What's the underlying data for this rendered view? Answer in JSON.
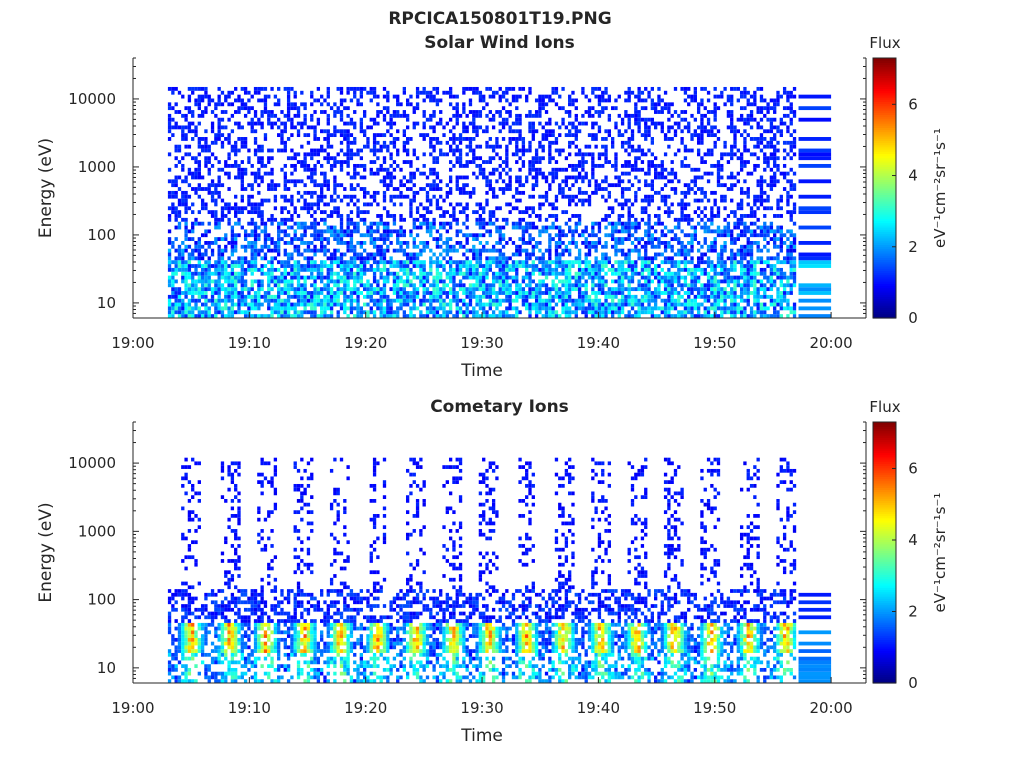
{
  "figure": {
    "title": "RPCICA150801T19.PNG"
  },
  "chart_data": [
    {
      "type": "heatmap",
      "title": "Solar Wind Ions",
      "xlabel": "Time",
      "ylabel": "Energy (eV)",
      "x_ticks": [
        "19:00",
        "19:10",
        "19:20",
        "19:30",
        "19:40",
        "19:50",
        "20:00"
      ],
      "x_tick_minutes": [
        0,
        10,
        20,
        30,
        40,
        50,
        60
      ],
      "xlim_minutes": [
        0,
        63
      ],
      "data_x_range_minutes": [
        3,
        57
      ],
      "y_scale": "log",
      "y_ticks": [
        "10",
        "100",
        "1000",
        "10000"
      ],
      "y_tick_values": [
        10,
        100,
        1000,
        10000
      ],
      "ylim": [
        6,
        40000
      ],
      "data_y_range": [
        6,
        15000
      ],
      "colorbar": {
        "label": "Flux",
        "unit_label": "eV⁻¹cm⁻²sr⁻¹s⁻¹",
        "ticks": [
          "0",
          "2",
          "4",
          "6"
        ],
        "tick_values": [
          0,
          2,
          4,
          6
        ],
        "range": [
          0,
          7.3
        ],
        "colormap": "jet"
      },
      "description_pattern": "sparse low-flux (~1) counts across all energies, higher flux (~2-4) bands below 100 eV"
    },
    {
      "type": "heatmap",
      "title": "Cometary Ions",
      "xlabel": "Time",
      "ylabel": "Energy (eV)",
      "x_ticks": [
        "19:00",
        "19:10",
        "19:20",
        "19:30",
        "19:40",
        "19:50",
        "20:00"
      ],
      "x_tick_minutes": [
        0,
        10,
        20,
        30,
        40,
        50,
        60
      ],
      "xlim_minutes": [
        0,
        63
      ],
      "data_x_range_minutes": [
        3,
        57
      ],
      "y_scale": "log",
      "y_ticks": [
        "10",
        "100",
        "1000",
        "10000"
      ],
      "y_tick_values": [
        10,
        100,
        1000,
        10000
      ],
      "ylim": [
        6,
        40000
      ],
      "data_y_range": [
        6,
        12000
      ],
      "colorbar": {
        "label": "Flux",
        "unit_label": "eV⁻¹cm⁻²sr⁻¹s⁻¹",
        "ticks": [
          "0",
          "2",
          "4",
          "6"
        ],
        "tick_values": [
          0,
          2,
          4,
          6
        ],
        "range": [
          0,
          7.3
        ],
        "colormap": "jet"
      },
      "burst_center_minutes": [
        4.9,
        8.2,
        11.3,
        14.6,
        17.7,
        20.9,
        24.2,
        27.4,
        30.5,
        33.7,
        36.9,
        40.1,
        43.2,
        46.4,
        49.6,
        52.8,
        56.0
      ],
      "burst_peak_flux": 5.6,
      "burst_energy_range": [
        15,
        40
      ]
    }
  ]
}
